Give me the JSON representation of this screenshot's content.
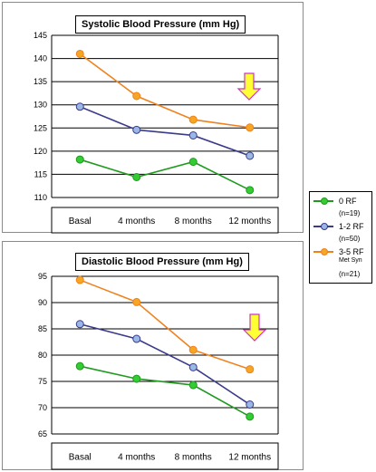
{
  "chart_data": [
    {
      "type": "line",
      "title": "Systolic Blood Pressure (mm Hg)",
      "categories": [
        "Basal",
        "4 months",
        "8 months",
        "12 months"
      ],
      "ylim": [
        110,
        145
      ],
      "yticks": [
        "110",
        "115",
        "120",
        "125",
        "130",
        "135",
        "140",
        "145"
      ],
      "grid": true,
      "series": [
        {
          "name": "0 RF",
          "values": [
            118.2,
            114.4,
            117.7,
            111.6
          ],
          "color": "#1f9a1f"
        },
        {
          "name": "1-2 RF",
          "values": [
            129.6,
            124.6,
            123.4,
            119.0
          ],
          "color": "#3b3b8c"
        },
        {
          "name": "3-5 RF Met Syn",
          "values": [
            141.0,
            131.9,
            126.8,
            125.1
          ],
          "color": "#f0821e"
        }
      ],
      "annotation": "down-arrow"
    },
    {
      "type": "line",
      "title": "Diastolic Blood Pressure (mm Hg)",
      "categories": [
        "Basal",
        "4 months",
        "8 months",
        "12 months"
      ],
      "ylim": [
        65,
        95
      ],
      "yticks": [
        "65",
        "70",
        "75",
        "80",
        "85",
        "90",
        "95"
      ],
      "grid": true,
      "series": [
        {
          "name": "0 RF",
          "values": [
            77.9,
            75.5,
            74.3,
            68.3
          ],
          "color": "#1f9a1f"
        },
        {
          "name": "1-2 RF",
          "values": [
            85.9,
            83.1,
            77.7,
            70.6
          ],
          "color": "#3b3b8c"
        },
        {
          "name": "3-5 RF Met Syn",
          "values": [
            94.3,
            90.1,
            81.0,
            77.3
          ],
          "color": "#f0821e"
        }
      ],
      "annotation": "down-arrow"
    }
  ],
  "legend": {
    "placement": "right",
    "items": [
      {
        "label": "0 RF",
        "sub": "(n=19)",
        "color": "#1f9a1f",
        "dot": "#33cc33"
      },
      {
        "label": "1-2 RF",
        "sub": "(n=50)",
        "color": "#3b3b8c",
        "dot": "#99b8e6"
      },
      {
        "label": "3-5 RF",
        "sub2": "Met Syn",
        "sub": "(n=21)",
        "color": "#f0821e",
        "dot": "#f5a623"
      }
    ]
  },
  "colors": {
    "marker_0rf": "#33cc33",
    "marker_12rf": "#99b8e6",
    "marker_35rf": "#f5a623",
    "arrow_fill": "#ffff33",
    "arrow_border": "#cc33cc"
  }
}
